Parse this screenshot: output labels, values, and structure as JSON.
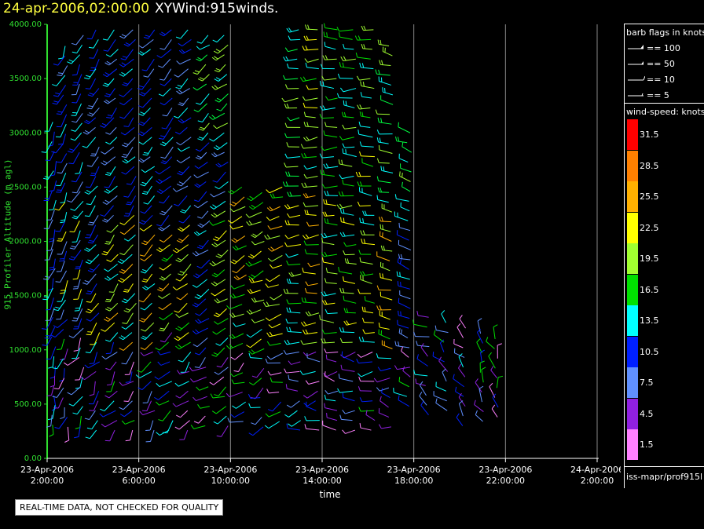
{
  "header": {
    "date": "24-apr-2006,02:00:00",
    "product": "XYWind:915winds."
  },
  "footer": {
    "qc_note": "REAL-TIME DATA, NOT CHECKED FOR QUALITY",
    "source": "iss-mapr/prof915l"
  },
  "legend": {
    "barb_title": "barb flags in knots",
    "barbs": [
      "== 100",
      "== 50",
      "== 10",
      "== 5"
    ],
    "speed_title": "wind-speed: knots",
    "speed_scale": [
      {
        "label": "31.5",
        "color": "#ff0000"
      },
      {
        "label": "28.5",
        "color": "#ff8000"
      },
      {
        "label": "25.5",
        "color": "#ffb000"
      },
      {
        "label": "22.5",
        "color": "#ffff00"
      },
      {
        "label": "19.5",
        "color": "#a0ff30"
      },
      {
        "label": "16.5",
        "color": "#00e000"
      },
      {
        "label": "13.5",
        "color": "#00ffff"
      },
      {
        "label": "10.5",
        "color": "#0020ff"
      },
      {
        "label": "7.5",
        "color": "#6090ff"
      },
      {
        "label": "4.5",
        "color": "#9020e0"
      },
      {
        "label": "1.5",
        "color": "#ff80ff"
      }
    ]
  },
  "chart_data": {
    "type": "scatter",
    "title": "XYWind:915winds.",
    "xlabel": "time",
    "ylabel": "915 Profiler Altitude (m agl)",
    "ylim": [
      0,
      4000
    ],
    "yticks": [
      "0.00",
      "500.00",
      "1000.00",
      "1500.00",
      "2000.00",
      "2500.00",
      "3000.00",
      "3500.00",
      "4000.00"
    ],
    "xticks": [
      [
        "23-Apr-2006",
        "2:00:00"
      ],
      [
        "23-Apr-2006",
        "6:00:00"
      ],
      [
        "23-Apr-2006",
        "10:00:00"
      ],
      [
        "23-Apr-2006",
        "14:00:00"
      ],
      [
        "23-Apr-2006",
        "18:00:00"
      ],
      [
        "23-Apr-2006",
        "22:00:00"
      ],
      [
        "24-Apr-2006",
        "2:00:00"
      ]
    ],
    "xlim_hours": [
      0,
      24
    ],
    "grid": "vertical",
    "profiles": [
      {
        "hour": 0.3,
        "top": 3100,
        "base": 280,
        "dir": 200,
        "band": [
          [
            3100,
            1
          ],
          [
            1600,
            2
          ],
          [
            900,
            3
          ]
        ]
      },
      {
        "hour": 0.8,
        "top": 3800,
        "base": 280,
        "dir": 205,
        "band": [
          [
            3800,
            1
          ],
          [
            2800,
            2
          ],
          [
            1400,
            3
          ]
        ]
      },
      {
        "hour": 1.5,
        "top": 3900,
        "base": 260,
        "dir": 210,
        "band": [
          [
            3900,
            1
          ],
          [
            2500,
            2
          ],
          [
            1200,
            3
          ]
        ]
      },
      {
        "hour": 2.2,
        "top": 3950,
        "base": 260,
        "dir": 215,
        "band": [
          [
            3950,
            1
          ],
          [
            2400,
            2
          ],
          [
            1100,
            3
          ]
        ]
      },
      {
        "hour": 3.0,
        "top": 3950,
        "base": 260,
        "dir": 220,
        "band": [
          [
            3950,
            1
          ],
          [
            2200,
            4
          ],
          [
            1100,
            3
          ]
        ]
      },
      {
        "hour": 3.8,
        "top": 3950,
        "base": 260,
        "dir": 220,
        "band": [
          [
            3950,
            1
          ],
          [
            2300,
            4
          ],
          [
            1000,
            3
          ]
        ]
      },
      {
        "hour": 4.6,
        "top": 3950,
        "base": 260,
        "dir": 225,
        "band": [
          [
            3950,
            1
          ],
          [
            2200,
            4
          ],
          [
            1000,
            3
          ]
        ]
      },
      {
        "hour": 5.4,
        "top": 3950,
        "base": 260,
        "dir": 225,
        "band": [
          [
            3950,
            1
          ],
          [
            2100,
            5
          ],
          [
            1200,
            3
          ]
        ]
      },
      {
        "hour": 6.2,
        "top": 3950,
        "base": 260,
        "dir": 230,
        "band": [
          [
            3950,
            1
          ],
          [
            2200,
            5
          ],
          [
            1000,
            3
          ]
        ]
      },
      {
        "hour": 7.0,
        "top": 3900,
        "base": 260,
        "dir": 230,
        "band": [
          [
            3900,
            0
          ],
          [
            3000,
            1
          ],
          [
            1000,
            3
          ]
        ]
      },
      {
        "hour": 7.8,
        "top": 3900,
        "base": 260,
        "dir": 235,
        "band": [
          [
            3900,
            0
          ],
          [
            3000,
            1
          ],
          [
            2400,
            6
          ],
          [
            1000,
            3
          ]
        ]
      },
      {
        "hour": 8.6,
        "top": 2500,
        "base": 260,
        "dir": 240,
        "band": [
          [
            2500,
            5
          ],
          [
            1600,
            6
          ],
          [
            1000,
            3
          ]
        ]
      },
      {
        "hour": 9.4,
        "top": 2450,
        "base": 260,
        "dir": 245,
        "band": [
          [
            2450,
            5
          ],
          [
            1800,
            6
          ],
          [
            1000,
            3
          ]
        ]
      },
      {
        "hour": 10.2,
        "top": 2500,
        "base": 260,
        "dir": 250,
        "band": [
          [
            2500,
            5
          ],
          [
            1800,
            6
          ],
          [
            1000,
            3
          ]
        ]
      },
      {
        "hour": 11.0,
        "top": 3950,
        "base": 260,
        "dir": 260,
        "band": [
          [
            3950,
            0
          ],
          [
            2400,
            6
          ],
          [
            1000,
            3
          ]
        ]
      },
      {
        "hour": 11.8,
        "top": 3950,
        "base": 260,
        "dir": 265,
        "band": [
          [
            3950,
            6
          ],
          [
            2600,
            5
          ],
          [
            1000,
            3
          ]
        ]
      },
      {
        "hour": 12.6,
        "top": 3950,
        "base": 260,
        "dir": 270,
        "band": [
          [
            3950,
            7
          ],
          [
            2400,
            6
          ],
          [
            1000,
            3
          ]
        ]
      },
      {
        "hour": 13.4,
        "top": 3950,
        "base": 260,
        "dir": 270,
        "band": [
          [
            3950,
            7
          ],
          [
            2600,
            6
          ],
          [
            1000,
            3
          ]
        ]
      },
      {
        "hour": 14.2,
        "top": 3950,
        "base": 260,
        "dir": 275,
        "band": [
          [
            3950,
            7
          ],
          [
            2800,
            6
          ],
          [
            1000,
            3
          ]
        ]
      },
      {
        "hour": 15.0,
        "top": 3800,
        "base": 260,
        "dir": 280,
        "band": [
          [
            3800,
            0
          ],
          [
            2300,
            5
          ],
          [
            1000,
            3
          ]
        ]
      },
      {
        "hour": 15.8,
        "top": 3000,
        "base": 400,
        "dir": 290,
        "band": [
          [
            3000,
            0
          ],
          [
            2400,
            1
          ],
          [
            1000,
            3
          ]
        ]
      },
      {
        "hour": 16.6,
        "top": 1300,
        "base": 400,
        "dir": 300,
        "band": [
          [
            1300,
            3
          ]
        ]
      },
      {
        "hour": 17.4,
        "top": 1250,
        "base": 400,
        "dir": 310,
        "band": [
          [
            1250,
            3
          ]
        ]
      },
      {
        "hour": 18.2,
        "top": 1200,
        "base": 300,
        "dir": 320,
        "band": [
          [
            1200,
            3
          ]
        ]
      },
      {
        "hour": 19.0,
        "top": 1150,
        "base": 300,
        "dir": 330,
        "band": [
          [
            1150,
            3
          ]
        ]
      },
      {
        "hour": 19.6,
        "top": 1100,
        "base": 300,
        "dir": 340,
        "band": [
          [
            1100,
            3
          ]
        ]
      }
    ]
  }
}
